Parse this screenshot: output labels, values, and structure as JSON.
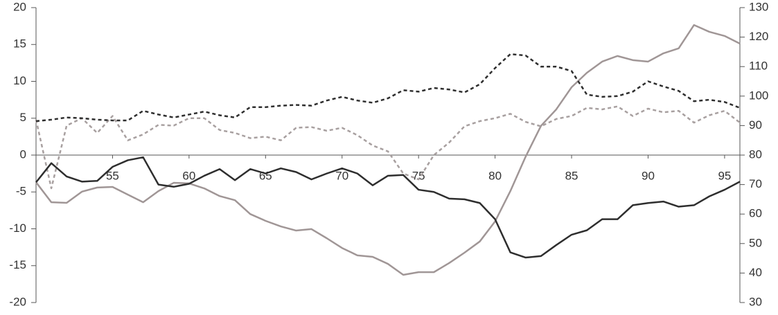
{
  "chart_data": {
    "type": "line",
    "x": [
      50,
      51,
      52,
      53,
      54,
      55,
      56,
      57,
      58,
      59,
      60,
      61,
      62,
      63,
      64,
      65,
      66,
      67,
      68,
      69,
      70,
      71,
      72,
      73,
      74,
      75,
      76,
      77,
      78,
      79,
      80,
      81,
      82,
      83,
      84,
      85,
      86,
      87,
      88,
      89,
      90,
      91,
      92,
      93,
      94,
      95,
      96
    ],
    "xlim": [
      50,
      96
    ],
    "xticks": [
      55,
      60,
      65,
      70,
      75,
      80,
      85,
      90,
      95
    ],
    "ylim": [
      -20,
      20
    ],
    "yticks": [
      -20,
      -15,
      -10,
      -5,
      0,
      5,
      10,
      15,
      20
    ],
    "y2lim": [
      30,
      130
    ],
    "y2ticks": [
      30,
      40,
      50,
      60,
      70,
      80,
      90,
      100,
      110,
      120,
      130
    ],
    "series": [
      {
        "color": "#a09696",
        "dashed": false,
        "axis": "y2",
        "values": [
          70.8,
          64.0,
          63.8,
          67.6,
          69.0,
          69.2,
          66.6,
          64.0,
          67.8,
          70.6,
          70.4,
          68.7,
          66.1,
          64.7,
          60.0,
          57.7,
          55.8,
          54.4,
          54.9,
          51.8,
          48.5,
          46.0,
          45.5,
          43.1,
          39.4,
          40.3,
          40.3,
          43.4,
          46.9,
          50.7,
          57.5,
          67.8,
          79.5,
          89.9,
          95.5,
          103.0,
          107.9,
          111.7,
          113.6,
          112.2,
          111.7,
          114.5,
          116.2,
          124.1,
          121.8,
          120.4,
          117.8
        ]
      },
      {
        "color": "#a8a0a0",
        "dashed": true,
        "values": [
          4.8,
          -4.5,
          4.0,
          5.0,
          3.0,
          5.3,
          2.0,
          2.8,
          4.1,
          4.0,
          5.0,
          5.0,
          3.4,
          3.0,
          2.3,
          2.5,
          2.0,
          3.7,
          3.8,
          3.3,
          3.7,
          2.7,
          1.3,
          0.5,
          -2.5,
          -3.3,
          0,
          1.7,
          3.9,
          4.6,
          5.0,
          5.6,
          4.5,
          3.9,
          4.9,
          5.3,
          6.4,
          6.2,
          6.6,
          5.3,
          6.3,
          5.8,
          6.0,
          4.4,
          5.4,
          6.0,
          4.4
        ]
      },
      {
        "color": "#2e2e2e",
        "dashed": true,
        "values": [
          4.6,
          4.8,
          5.1,
          5.0,
          4.8,
          4.7,
          4.7,
          6.0,
          5.5,
          5.1,
          5.5,
          5.9,
          5.4,
          5.1,
          6.5,
          6.5,
          6.7,
          6.8,
          6.7,
          7.4,
          7.9,
          7.4,
          7.1,
          7.7,
          8.8,
          8.6,
          9.1,
          8.9,
          8.5,
          9.6,
          11.8,
          13.7,
          13.5,
          12.0,
          12.0,
          11.4,
          8.2,
          7.9,
          8.0,
          8.6,
          10.0,
          9.3,
          8.7,
          7.3,
          7.5,
          7.2,
          6.4
        ]
      },
      {
        "color": "#2e2e2e",
        "dashed": false,
        "values": [
          -3.7,
          -1.1,
          -2.9,
          -3.6,
          -3.5,
          -1.6,
          -0.7,
          -0.3,
          -4.0,
          -4.3,
          -3.9,
          -2.8,
          -1.9,
          -3.4,
          -1.9,
          -2.5,
          -1.8,
          -2.3,
          -3.3,
          -2.5,
          -1.8,
          -2.5,
          -4.1,
          -2.8,
          -2.7,
          -4.7,
          -5.0,
          -5.9,
          -6.0,
          -6.5,
          -8.7,
          -13.2,
          -13.9,
          -13.7,
          -12.2,
          -10.8,
          -10.2,
          -8.7,
          -8.7,
          -6.8,
          -6.5,
          -6.3,
          -7.0,
          -6.8,
          -5.6,
          -4.7,
          -3.6
        ]
      }
    ]
  }
}
